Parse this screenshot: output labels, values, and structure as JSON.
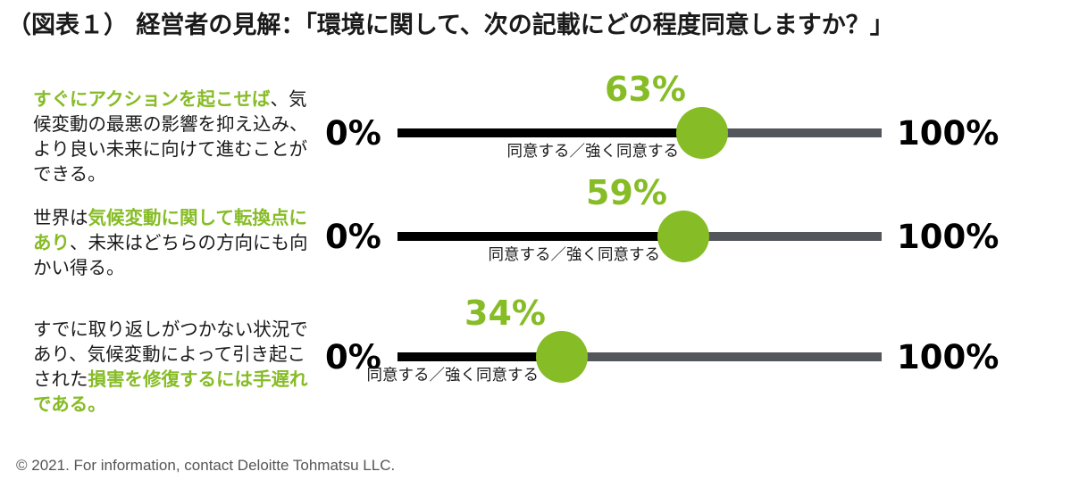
{
  "title": "（図表１） 経営者の見解：「環境に関して、次の記載にどの程度同意しますか？」",
  "scale": {
    "min_label": "0%",
    "max_label": "100%"
  },
  "colors": {
    "accent_green": "#86bc25",
    "fill_black": "#000000",
    "track_gray": "#53565a"
  },
  "rows": [
    {
      "statement_parts": [
        {
          "text": "すぐにアクションを起こせば",
          "highlight": true
        },
        {
          "text": "、気候変動の最悪の影響を抑え込み、より良い未来に向けて進むことができる。",
          "highlight": false
        }
      ],
      "value": 63,
      "value_label": "63%",
      "caption": "同意する／強く同意する"
    },
    {
      "statement_parts": [
        {
          "text": "世界は",
          "highlight": false
        },
        {
          "text": "気候変動に関して転換点にあり",
          "highlight": true
        },
        {
          "text": "、未来はどちらの方向にも向かい得る。",
          "highlight": false
        }
      ],
      "value": 59,
      "value_label": "59%",
      "caption": "同意する／強く同意する"
    },
    {
      "statement_parts": [
        {
          "text": "すでに取り返しがつかない状況であり、気候変動によって引き起こされた",
          "highlight": false
        },
        {
          "text": "損害を修復するには手遅れである。",
          "highlight": true
        }
      ],
      "value": 34,
      "value_label": "34%",
      "caption": "同意する／強く同意する"
    }
  ],
  "footer": "© 2021. For information, contact Deloitte Tohmatsu LLC.",
  "chart_data": {
    "type": "bar",
    "title": "（図表１） 経営者の見解：「環境に関して、次の記載にどの程度同意しますか？」",
    "categories": [
      "すぐにアクションを起こせば、気候変動の最悪の影響を抑え込み、より良い未来に向けて進むことができる。",
      "世界は気候変動に関して転換点にあり、未来はどちらの方向にも向かい得る。",
      "すでに取り返しがつかない状況であり、気候変動によって引き起こされた損害を修復するには手遅れである。"
    ],
    "series": [
      {
        "name": "同意する／強く同意する",
        "values": [
          63,
          59,
          34
        ]
      }
    ],
    "xlabel": "",
    "ylabel": "",
    "xlim": [
      0,
      100
    ],
    "orientation": "horizontal",
    "unit": "%",
    "grid": false,
    "legend": "none",
    "annotations": [
      "0%",
      "100%",
      "63%",
      "59%",
      "34%"
    ]
  }
}
